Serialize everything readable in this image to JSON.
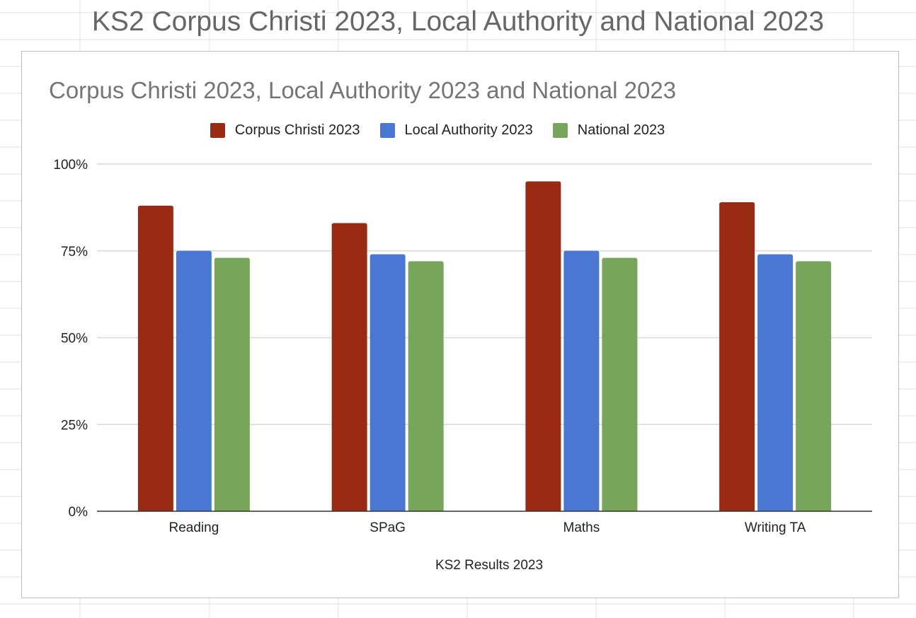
{
  "sheet": {
    "title": "KS2 Corpus Christi 2023, Local Authority and National 2023"
  },
  "colors": {
    "corpus_christi": "#992b14",
    "local_authority": "#4a77d4",
    "national": "#77a55a",
    "gridline": "#d9d9d9",
    "baseline": "#333333"
  },
  "chart_data": {
    "type": "bar",
    "title": "Corpus Christi 2023, Local Authority 2023 and National 2023",
    "xlabel": "KS2 Results 2023",
    "ylabel": "",
    "categories": [
      "Reading",
      "SPaG",
      "Maths",
      "Writing TA"
    ],
    "series": [
      {
        "name": "Corpus Christi 2023",
        "values": [
          88,
          83,
          95,
          89
        ],
        "color": "#992b14"
      },
      {
        "name": "Local Authority 2023",
        "values": [
          75,
          74,
          75,
          74
        ],
        "color": "#4a77d4"
      },
      {
        "name": "National 2023",
        "values": [
          73,
          72,
          73,
          72
        ],
        "color": "#77a55a"
      }
    ],
    "ylim": [
      0,
      100
    ],
    "yticks": [
      0,
      25,
      50,
      75,
      100
    ],
    "ytick_labels": [
      "0%",
      "25%",
      "50%",
      "75%",
      "100%"
    ],
    "grid": true,
    "legend": "top-center"
  }
}
